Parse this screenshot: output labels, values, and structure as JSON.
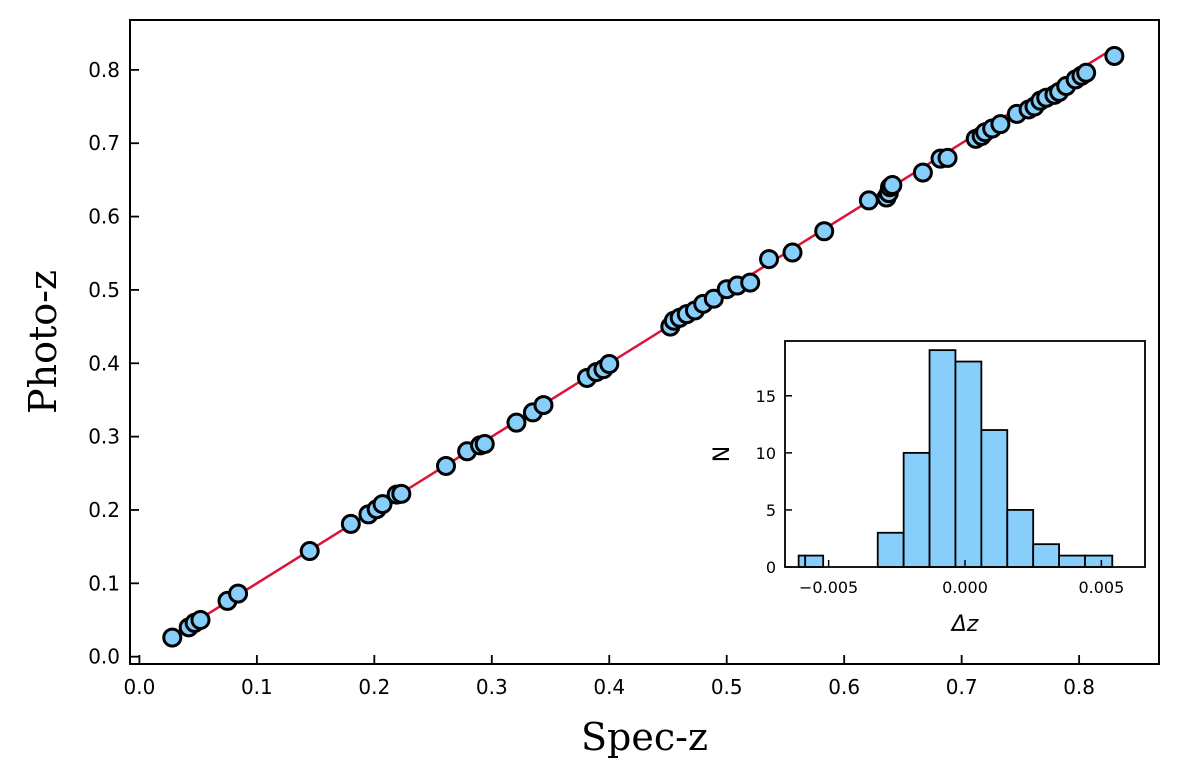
{
  "chart_data": [
    {
      "id": "main",
      "type": "scatter",
      "xlabel": "Spec-z",
      "ylabel": "Photo-z",
      "xlim": [
        -0.008,
        0.868
      ],
      "ylim": [
        -0.01,
        0.868
      ],
      "xticks": [
        0.0,
        0.1,
        0.2,
        0.3,
        0.4,
        0.5,
        0.6,
        0.7,
        0.8
      ],
      "xtick_labels": [
        "0.0",
        "0.1",
        "0.2",
        "0.3",
        "0.4",
        "0.5",
        "0.6",
        "0.7",
        "0.8"
      ],
      "yticks": [
        0.0,
        0.1,
        0.2,
        0.3,
        0.4,
        0.5,
        0.6,
        0.7,
        0.8
      ],
      "ytick_labels": [
        "0.0",
        "0.1",
        "0.2",
        "0.3",
        "0.4",
        "0.5",
        "0.6",
        "0.7",
        "0.8"
      ],
      "line": {
        "name": "one-to-one",
        "x": [
          0.028,
          0.83
        ],
        "y": [
          0.028,
          0.83
        ],
        "color": "#dc143c"
      },
      "marker_fill": "#87cefa",
      "marker_edge": "#000000",
      "points": [
        [
          0.028,
          0.026
        ],
        [
          0.042,
          0.04
        ],
        [
          0.047,
          0.046
        ],
        [
          0.052,
          0.05
        ],
        [
          0.075,
          0.076
        ],
        [
          0.084,
          0.086
        ],
        [
          0.145,
          0.144
        ],
        [
          0.18,
          0.181
        ],
        [
          0.195,
          0.194
        ],
        [
          0.202,
          0.201
        ],
        [
          0.207,
          0.208
        ],
        [
          0.219,
          0.221
        ],
        [
          0.223,
          0.222
        ],
        [
          0.261,
          0.26
        ],
        [
          0.279,
          0.28
        ],
        [
          0.29,
          0.288
        ],
        [
          0.294,
          0.29
        ],
        [
          0.321,
          0.319
        ],
        [
          0.335,
          0.333
        ],
        [
          0.344,
          0.343
        ],
        [
          0.381,
          0.38
        ],
        [
          0.389,
          0.388
        ],
        [
          0.395,
          0.392
        ],
        [
          0.4,
          0.399
        ],
        [
          0.452,
          0.45
        ],
        [
          0.455,
          0.458
        ],
        [
          0.46,
          0.462
        ],
        [
          0.466,
          0.467
        ],
        [
          0.473,
          0.472
        ],
        [
          0.48,
          0.481
        ],
        [
          0.489,
          0.488
        ],
        [
          0.5,
          0.501
        ],
        [
          0.509,
          0.506
        ],
        [
          0.52,
          0.51
        ],
        [
          0.536,
          0.542
        ],
        [
          0.556,
          0.551
        ],
        [
          0.583,
          0.58
        ],
        [
          0.621,
          0.622
        ],
        [
          0.636,
          0.626
        ],
        [
          0.638,
          0.632
        ],
        [
          0.639,
          0.64
        ],
        [
          0.641,
          0.643
        ],
        [
          0.667,
          0.66
        ],
        [
          0.682,
          0.679
        ],
        [
          0.688,
          0.68
        ],
        [
          0.712,
          0.706
        ],
        [
          0.717,
          0.71
        ],
        [
          0.72,
          0.715
        ],
        [
          0.726,
          0.72
        ],
        [
          0.733,
          0.726
        ],
        [
          0.747,
          0.74
        ],
        [
          0.757,
          0.746
        ],
        [
          0.762,
          0.75
        ],
        [
          0.767,
          0.758
        ],
        [
          0.772,
          0.762
        ],
        [
          0.779,
          0.766
        ],
        [
          0.783,
          0.77
        ],
        [
          0.789,
          0.778
        ],
        [
          0.797,
          0.787
        ],
        [
          0.802,
          0.792
        ],
        [
          0.806,
          0.796
        ],
        [
          0.83,
          0.819
        ]
      ]
    },
    {
      "id": "inset",
      "type": "bar",
      "subtype": "histogram",
      "xlabel": "Δz",
      "ylabel": "N",
      "xlim": [
        -0.0066,
        0.0066
      ],
      "ylim": [
        0,
        19.8
      ],
      "xticks": [
        -0.005,
        0.0,
        0.005
      ],
      "xtick_labels": [
        "−0.005",
        "0.000",
        "0.005"
      ],
      "yticks": [
        0,
        5,
        10,
        15
      ],
      "ytick_labels": [
        "0",
        "5",
        "10",
        "15"
      ],
      "bar_fill": "#87cefa",
      "bar_edge": "#000000",
      "bins": [
        {
          "lo": -0.0061,
          "hi": -0.00586,
          "count": 1
        },
        {
          "lo": -0.00586,
          "hi": -0.0052,
          "count": 1
        },
        {
          "lo": -0.0032,
          "hi": -0.00225,
          "count": 3
        },
        {
          "lo": -0.00225,
          "hi": -0.0013,
          "count": 10
        },
        {
          "lo": -0.0013,
          "hi": -0.00035,
          "count": 19
        },
        {
          "lo": -0.00035,
          "hi": 0.0006,
          "count": 18
        },
        {
          "lo": 0.0006,
          "hi": 0.00155,
          "count": 12
        },
        {
          "lo": 0.00155,
          "hi": 0.0025,
          "count": 5
        },
        {
          "lo": 0.0025,
          "hi": 0.00345,
          "count": 2
        },
        {
          "lo": 0.00345,
          "hi": 0.0044,
          "count": 1
        },
        {
          "lo": 0.0044,
          "hi": 0.0054,
          "count": 1
        }
      ]
    }
  ]
}
